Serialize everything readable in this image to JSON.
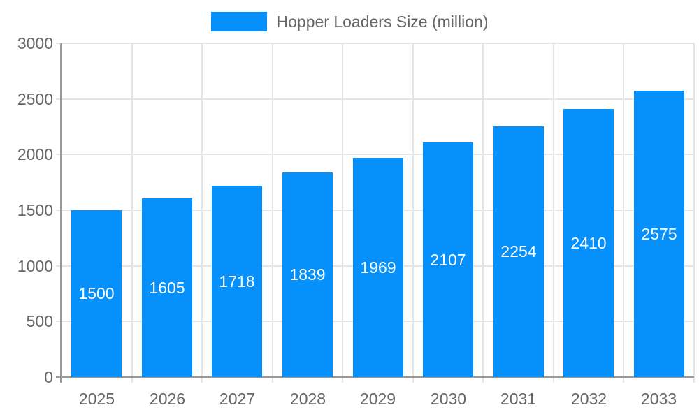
{
  "chart_data": {
    "type": "bar",
    "title": "Hopper Loaders Size (million)",
    "categories": [
      "2025",
      "2026",
      "2027",
      "2028",
      "2029",
      "2030",
      "2031",
      "2032",
      "2033"
    ],
    "values": [
      1500,
      1605,
      1718,
      1839,
      1969,
      2107,
      2254,
      2410,
      2575
    ],
    "xlabel": "",
    "ylabel": "",
    "ylim": [
      0,
      3000
    ],
    "yticks": [
      0,
      500,
      1000,
      1500,
      2000,
      2500,
      3000
    ],
    "grid": true,
    "legend_position": "top",
    "data_labels": "inside-center",
    "colors": {
      "bar": "#0590fb",
      "bar_label": "#ffffff",
      "axis_text": "#666666",
      "grid": "#e5e5e5",
      "axis_line": "#999999",
      "background": "#ffffff"
    }
  },
  "legend": {
    "label": "Hopper Loaders Size (million)"
  }
}
